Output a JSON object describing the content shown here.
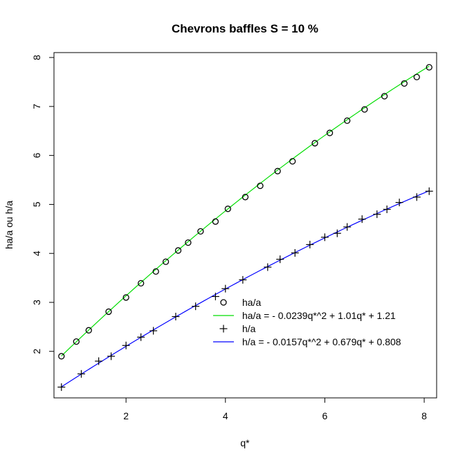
{
  "chart_data": {
    "type": "scatter",
    "title": "Chevrons baffles S = 10 %",
    "xlabel": "q*",
    "ylabel": "ha/a ou h/a",
    "xlim": [
      0.55,
      8.25
    ],
    "ylim": [
      1.05,
      8.1
    ],
    "xticks": [
      2,
      4,
      6,
      8
    ],
    "yticks": [
      2,
      3,
      4,
      5,
      6,
      7,
      8
    ],
    "grid": false,
    "legend_position": "bottom-right",
    "series": [
      {
        "name": "ha/a",
        "marker": "circle",
        "color": "#000000",
        "x": [
          0.7,
          1.0,
          1.25,
          1.65,
          2.0,
          2.3,
          2.6,
          2.8,
          3.05,
          3.25,
          3.5,
          3.8,
          4.05,
          4.4,
          4.7,
          5.05,
          5.35,
          5.8,
          6.1,
          6.45,
          6.8,
          7.2,
          7.6,
          7.85,
          8.1
        ],
        "y": [
          1.9,
          2.2,
          2.43,
          2.81,
          3.1,
          3.39,
          3.63,
          3.83,
          4.06,
          4.22,
          4.45,
          4.65,
          4.91,
          5.15,
          5.38,
          5.68,
          5.88,
          6.25,
          6.46,
          6.71,
          6.94,
          7.21,
          7.47,
          7.6,
          7.8
        ]
      },
      {
        "name": "h/a",
        "marker": "plus",
        "color": "#000000",
        "x": [
          0.7,
          1.1,
          1.45,
          1.7,
          2.0,
          2.3,
          2.55,
          3.0,
          3.4,
          3.8,
          4.0,
          4.35,
          4.85,
          5.1,
          5.4,
          5.7,
          6.0,
          6.25,
          6.45,
          6.75,
          7.05,
          7.25,
          7.5,
          7.85,
          8.1
        ],
        "y": [
          1.27,
          1.54,
          1.8,
          1.9,
          2.12,
          2.29,
          2.42,
          2.71,
          2.92,
          3.12,
          3.28,
          3.46,
          3.72,
          3.88,
          4.01,
          4.18,
          4.33,
          4.41,
          4.54,
          4.7,
          4.8,
          4.9,
          5.04,
          5.15,
          5.27
        ]
      }
    ],
    "fits": [
      {
        "name": "ha/a = - 0.0239q*^2 + 1.01q* + 1.21",
        "color": "#00dd00",
        "coefficients": {
          "a": -0.0239,
          "b": 1.01,
          "c": 1.21
        },
        "x_range": [
          0.7,
          8.1
        ]
      },
      {
        "name": "h/a = - 0.0157q*^2 + 0.679q* + 0.808",
        "color": "#0000ff",
        "coefficients": {
          "a": -0.0157,
          "b": 0.679,
          "c": 0.808
        },
        "x_range": [
          0.7,
          8.1
        ]
      }
    ],
    "legend": [
      {
        "label": "ha/a",
        "kind": "circle",
        "color": "#000000"
      },
      {
        "label": "ha/a = - 0.0239q*^2 + 1.01q* + 1.21",
        "kind": "line",
        "color": "#00dd00"
      },
      {
        "label": "h/a",
        "kind": "plus",
        "color": "#000000"
      },
      {
        "label": "h/a = - 0.0157q*^2 + 0.679q* + 0.808",
        "kind": "line",
        "color": "#0000ff"
      }
    ]
  }
}
